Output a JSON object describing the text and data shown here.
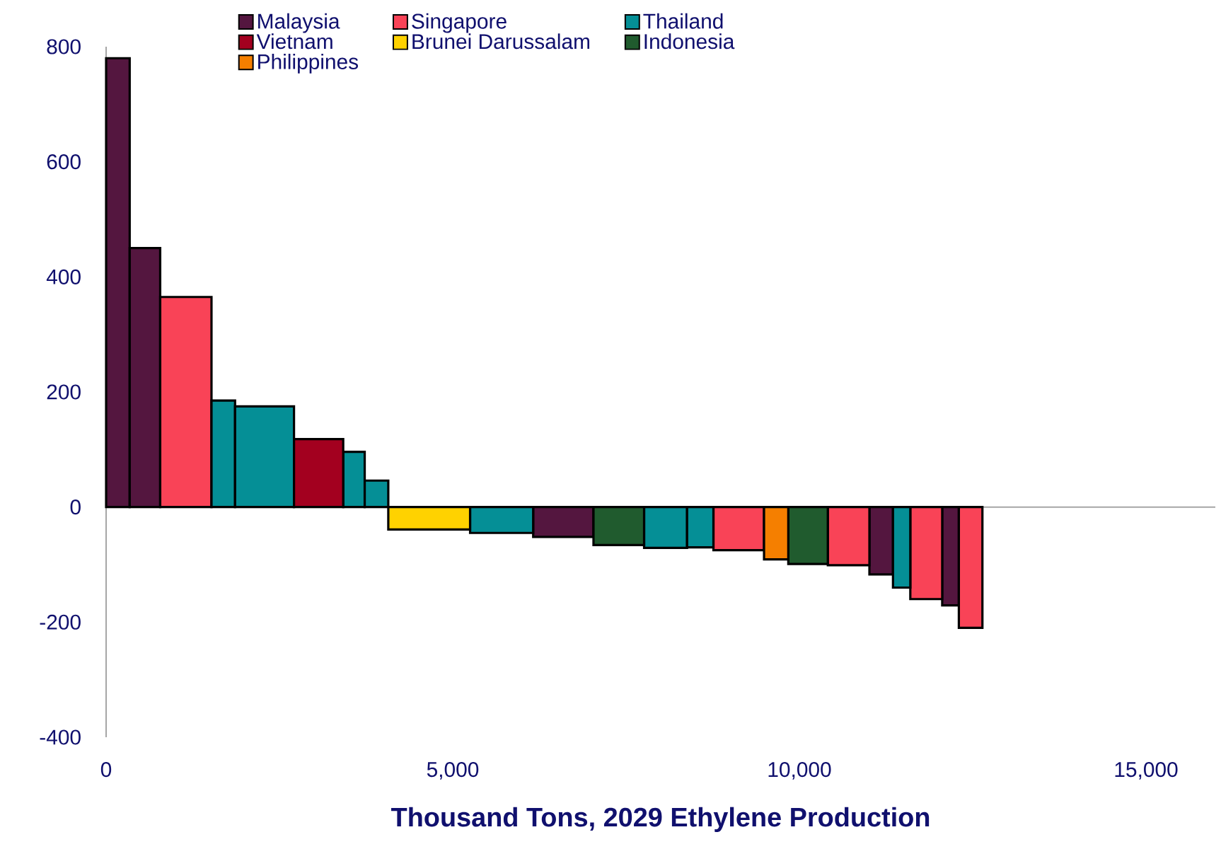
{
  "chart_data": {
    "type": "histogram",
    "xlabel": "Thousand Tons,  2029 Ethylene Production",
    "bins": [
      0,
      340,
      780,
      1520,
      1860,
      2710,
      3420,
      3730,
      4070,
      5250,
      6160,
      7030,
      7760,
      8380,
      8760,
      9490,
      9840,
      10410,
      11010,
      11350,
      11600,
      12060,
      12300,
      12640
    ],
    "series": [
      {
        "name": "Malaysia",
        "color": "#54163f",
        "values": [
          780,
          450,
          null,
          null,
          null,
          null,
          null,
          null,
          null,
          null,
          -52,
          null,
          null,
          null,
          null,
          null,
          null,
          null,
          -117,
          null,
          null,
          -171,
          null
        ]
      },
      {
        "name": "Singapore",
        "color": "#f94357",
        "values": [
          null,
          null,
          365,
          null,
          null,
          null,
          null,
          null,
          null,
          null,
          null,
          null,
          null,
          null,
          -75,
          null,
          null,
          -101,
          null,
          null,
          -160,
          null,
          -210
        ]
      },
      {
        "name": "Thailand",
        "color": "#058f96",
        "values": [
          null,
          null,
          null,
          185,
          175,
          null,
          96,
          46,
          null,
          -45,
          null,
          null,
          -71,
          -70,
          null,
          null,
          null,
          null,
          null,
          -140,
          null,
          null,
          null
        ]
      },
      {
        "name": "Vietnam",
        "color": "#a3001f",
        "values": [
          null,
          null,
          null,
          null,
          null,
          118,
          null,
          null,
          null,
          null,
          null,
          null,
          null,
          null,
          null,
          null,
          null,
          null,
          null,
          null,
          null,
          null,
          null
        ]
      },
      {
        "name": "Brunei Darussalam",
        "color": "#ffd200",
        "values": [
          null,
          null,
          null,
          null,
          null,
          null,
          null,
          null,
          -39,
          null,
          null,
          null,
          null,
          null,
          null,
          null,
          null,
          null,
          null,
          null,
          null,
          null,
          null
        ]
      },
      {
        "name": "Indonesia",
        "color": "#205b2e",
        "values": [
          null,
          null,
          null,
          null,
          null,
          null,
          null,
          null,
          null,
          null,
          null,
          -66,
          null,
          null,
          null,
          null,
          -99,
          null,
          null,
          null,
          null,
          null,
          null
        ]
      },
      {
        "name": "Philippines",
        "color": "#f57f00",
        "values": [
          null,
          null,
          null,
          null,
          null,
          null,
          null,
          null,
          null,
          null,
          null,
          null,
          null,
          null,
          null,
          -91,
          null,
          null,
          null,
          null,
          null,
          null,
          null
        ]
      }
    ],
    "xlim": [
      0,
      16000
    ],
    "xticks": [
      0,
      {
        "value": 5000,
        "label": "5,000"
      },
      {
        "value": 10000,
        "label": "10,000"
      },
      {
        "value": 15000,
        "label": "15,000"
      }
    ],
    "ylim": [
      -400,
      800
    ],
    "yticks": [
      -400,
      -200,
      0,
      200,
      400,
      600,
      800
    ],
    "ref_lines": [
      {
        "axis": "y",
        "value": 0,
        "color": "#a6a6a6"
      }
    ],
    "legend": "top",
    "grid": false
  }
}
